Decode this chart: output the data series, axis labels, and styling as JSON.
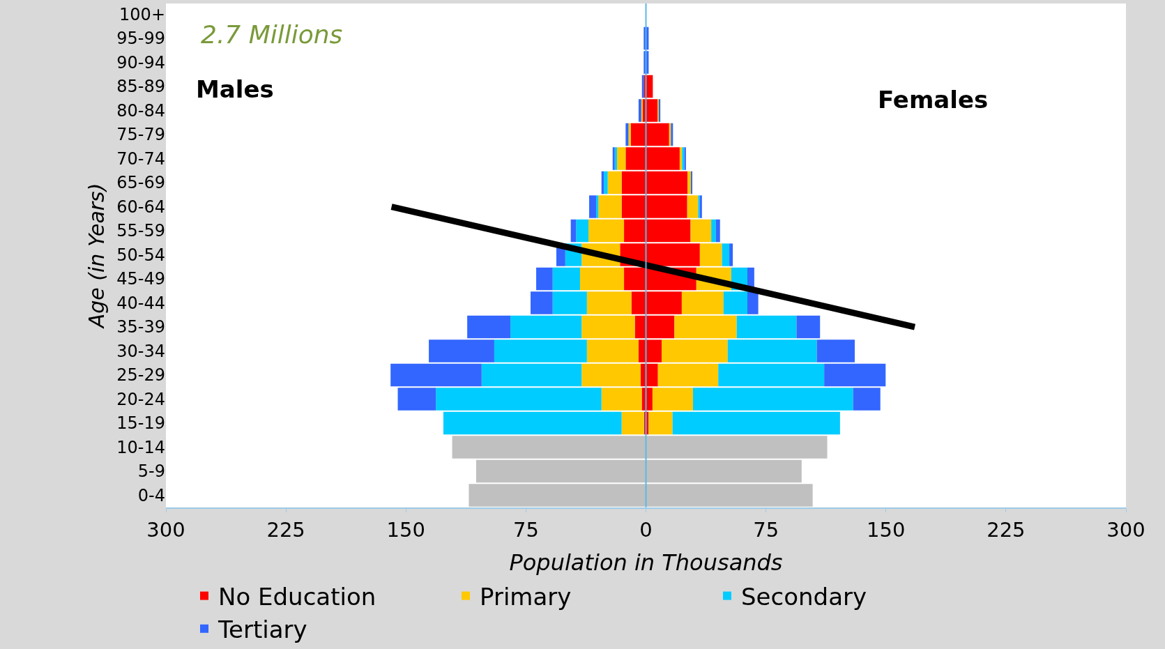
{
  "chart_data": {
    "type": "bar",
    "orientation": "horizontal",
    "stacked": true,
    "xlabel": "Population in Thousands",
    "ylabel": "Age (in Years)",
    "annotations": [
      "2.7 Millions",
      "Males",
      "Females"
    ],
    "categories": [
      "100+",
      "95-99",
      "90-94",
      "85-89",
      "80-84",
      "75-79",
      "70-74",
      "65-69",
      "60-64",
      "55-59",
      "50-54",
      "45-49",
      "40-44",
      "35-39",
      "30-34",
      "25-29",
      "20-24",
      "15-19",
      "10-14",
      "5-9",
      "0-4"
    ],
    "xlim": [
      -300,
      300
    ],
    "xticks": [
      {
        "value": -300,
        "label": "300"
      },
      {
        "value": -225,
        "label": "225"
      },
      {
        "value": -150,
        "label": "150"
      },
      {
        "value": -75,
        "label": "75"
      },
      0,
      75,
      150,
      225,
      300
    ],
    "grid": false,
    "legend": "bottom",
    "ref_lines": [
      {
        "axis": "x",
        "value": 0,
        "color": "#5bb8e8"
      }
    ],
    "series": [
      {
        "name": "No Education",
        "color": "#ff0000",
        "values": [
          null,
          null,
          null,
          -1.4,
          -2.2,
          -9.4,
          -12.7,
          -15.2,
          -15.2,
          -13.7,
          -16.2,
          -13.7,
          -9.1,
          -6.9,
          -4.6,
          -3.3,
          -2.6,
          -1.2,
          null,
          null,
          null
        ]
      },
      {
        "name": "Primary",
        "color": "#ffc800",
        "values": [
          null,
          null,
          null,
          null,
          -0.7,
          -1.5,
          -5.4,
          -8.7,
          -14.5,
          -22.2,
          -24.0,
          -27.5,
          -27.8,
          -33.3,
          -32.3,
          -36.9,
          -25.2,
          -14.0,
          null,
          null,
          null
        ]
      },
      {
        "name": "Secondary",
        "color": "#00ccff",
        "values": [
          null,
          null,
          null,
          null,
          null,
          null,
          -1.4,
          -2.4,
          -1.4,
          -7.8,
          -10.2,
          -17.1,
          -21.4,
          -44.5,
          -57.9,
          -62.5,
          -103.5,
          -111.4,
          null,
          null,
          null
        ]
      },
      {
        "name": "Tertiary",
        "color": "#3366ff",
        "values": [
          null,
          -1.4,
          -1.4,
          -1.1,
          -1.7,
          -1.8,
          -1.3,
          -1.5,
          -4.4,
          -3.3,
          -5.6,
          -10.3,
          -13.8,
          -27.0,
          -40.9,
          -56.9,
          -23.8,
          null,
          null,
          null,
          null
        ]
      },
      {
        "color": "#c0c0c0",
        "values": [
          null,
          null,
          null,
          null,
          null,
          null,
          null,
          null,
          null,
          null,
          null,
          null,
          null,
          null,
          null,
          null,
          null,
          null,
          -121.1,
          -106.1,
          -110.7
        ]
      },
      {
        "color": "#ff0000",
        "values": [
          null,
          null,
          null,
          4.3,
          7.2,
          14.5,
          21.1,
          26.0,
          25.8,
          27.9,
          33.7,
          31.5,
          22.4,
          17.8,
          9.8,
          7.5,
          4.1,
          1.7,
          null,
          null,
          null
        ]
      },
      {
        "color": "#ffc800",
        "values": [
          null,
          null,
          null,
          null,
          0.8,
          1.1,
          1.5,
          2.2,
          6.8,
          12.9,
          13.8,
          21.8,
          26.1,
          38.9,
          41.3,
          37.7,
          25.3,
          14.9,
          null,
          null,
          null
        ]
      },
      {
        "color": "#00ccff",
        "values": [
          null,
          null,
          null,
          null,
          null,
          null,
          1.4,
          null,
          1.0,
          2.9,
          4.6,
          10.1,
          14.9,
          37.4,
          55.7,
          66.2,
          100.1,
          104.7,
          null,
          null,
          null
        ]
      },
      {
        "color": "#3366ff",
        "values": [
          null,
          1.7,
          1.7,
          null,
          1.0,
          1.3,
          1.0,
          0.8,
          1.4,
          2.6,
          2.2,
          4.3,
          6.8,
          14.7,
          23.7,
          38.4,
          17.0,
          null,
          null,
          null,
          null
        ]
      },
      {
        "color": "#c0c0c0",
        "values": [
          null,
          null,
          null,
          null,
          null,
          null,
          null,
          null,
          null,
          null,
          null,
          null,
          null,
          null,
          null,
          null,
          null,
          null,
          113.3,
          97.3,
          104.2
        ]
      },
      {
        "type": "line",
        "color": "#000000",
        "values": [
          null,
          null,
          null,
          null,
          null,
          null,
          null,
          null,
          -159,
          null,
          null,
          null,
          null,
          168,
          null,
          null,
          null,
          null,
          null,
          null,
          null
        ]
      }
    ]
  }
}
